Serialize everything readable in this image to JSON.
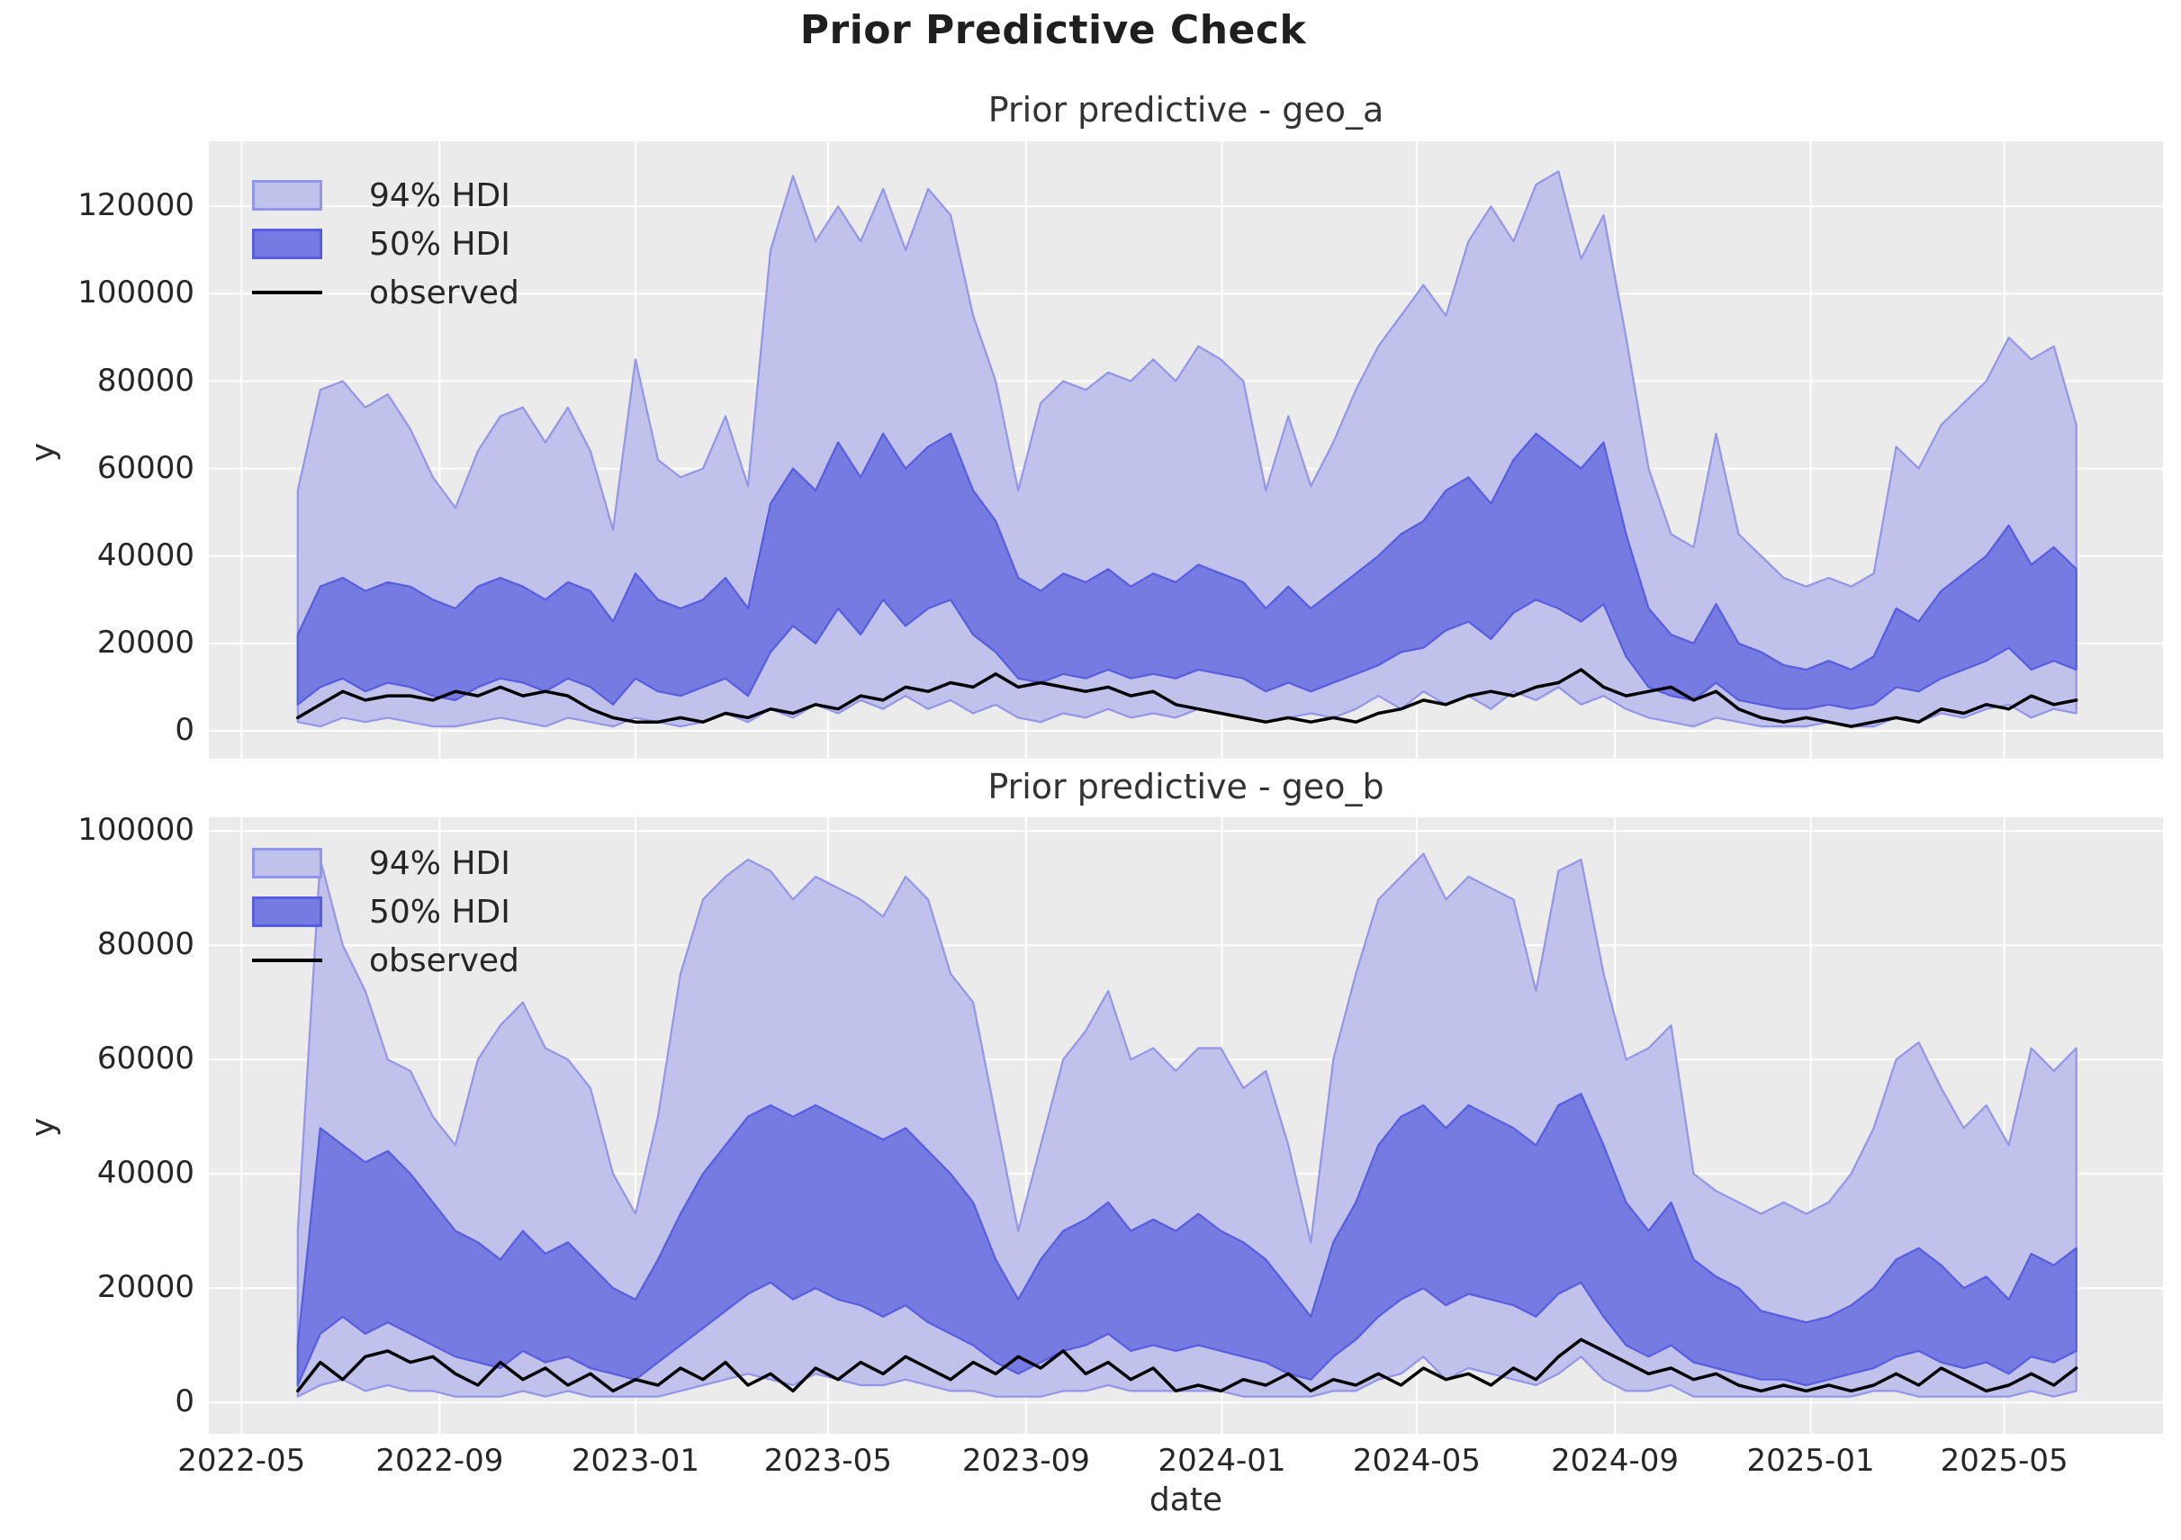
{
  "figure": {
    "title": "Prior Predictive Check"
  },
  "colors": {
    "figure_background": "#ffffff",
    "axes_background": "#ebebeb",
    "grid": "#ffffff",
    "hdi94_fill": "#c0c2eb",
    "hdi94_edge": "#9396e8",
    "hdi50_fill": "#767be2",
    "hdi50_edge": "#575ddf",
    "observed": "#000000",
    "text": "#262626"
  },
  "legend": {
    "hdi94_label": "94% HDI",
    "hdi50_label": "50% HDI",
    "observed_label": "observed"
  },
  "x_axis": {
    "label": "date",
    "xlim_weeks": [
      -7.9,
      165.7
    ],
    "x_start_date": "2022-06-05",
    "x_step_days": 14,
    "ticks": [
      {
        "label": "2022-05",
        "week": -5.0
      },
      {
        "label": "2022-09",
        "week": 12.6
      },
      {
        "label": "2023-01",
        "week": 30.0
      },
      {
        "label": "2023-05",
        "week": 47.1
      },
      {
        "label": "2023-09",
        "week": 64.7
      },
      {
        "label": "2024-01",
        "week": 82.1
      },
      {
        "label": "2024-05",
        "week": 99.4
      },
      {
        "label": "2024-09",
        "week": 117.0
      },
      {
        "label": "2025-01",
        "week": 134.4
      },
      {
        "label": "2025-05",
        "week": 151.6
      }
    ]
  },
  "chart_data": [
    {
      "type": "area",
      "name": "geo_a",
      "title": "Prior predictive - geo_a",
      "ylabel": "y",
      "legend_position": "upper left",
      "grid": true,
      "ylim": [
        -6400,
        134900
      ],
      "yticks": [
        0,
        20000,
        40000,
        60000,
        80000,
        100000,
        120000
      ],
      "x_weeks": [
        0,
        2,
        4,
        6,
        8,
        10,
        12,
        14,
        16,
        18,
        20,
        22,
        24,
        26,
        28,
        30,
        32,
        34,
        36,
        38,
        40,
        42,
        44,
        46,
        48,
        50,
        52,
        54,
        56,
        58,
        60,
        62,
        64,
        66,
        68,
        70,
        72,
        74,
        76,
        78,
        80,
        82,
        84,
        86,
        88,
        90,
        92,
        94,
        96,
        98,
        100,
        102,
        104,
        106,
        108,
        110,
        112,
        114,
        116,
        118,
        120,
        122,
        124,
        126,
        128,
        130,
        132,
        134,
        136,
        138,
        140,
        142,
        144,
        146,
        148,
        150,
        152,
        154,
        156,
        158
      ],
      "hdi94_upper": [
        55000,
        78000,
        80000,
        74000,
        77000,
        69000,
        58000,
        51000,
        64000,
        72000,
        74000,
        66000,
        74000,
        64000,
        46000,
        85000,
        62000,
        58000,
        60000,
        72000,
        56000,
        110000,
        127000,
        112000,
        120000,
        112000,
        124000,
        110000,
        124000,
        118000,
        95000,
        80000,
        55000,
        75000,
        80000,
        78000,
        82000,
        80000,
        85000,
        80000,
        88000,
        85000,
        80000,
        55000,
        72000,
        56000,
        66000,
        78000,
        88000,
        95000,
        102000,
        95000,
        112000,
        120000,
        112000,
        125000,
        128000,
        108000,
        118000,
        90000,
        60000,
        45000,
        42000,
        68000,
        45000,
        40000,
        35000,
        33000,
        35000,
        33000,
        36000,
        65000,
        60000,
        70000,
        75000,
        80000,
        90000,
        85000,
        88000,
        70000
      ],
      "hdi94_lower": [
        2000,
        1000,
        3000,
        2000,
        3000,
        2000,
        1000,
        1000,
        2000,
        3000,
        2000,
        1000,
        3000,
        2000,
        1000,
        3000,
        2000,
        1000,
        2000,
        4000,
        2000,
        5000,
        3000,
        6000,
        4000,
        7000,
        5000,
        8000,
        5000,
        7000,
        4000,
        6000,
        3000,
        2000,
        4000,
        3000,
        5000,
        3000,
        4000,
        3000,
        5000,
        4000,
        3000,
        2000,
        3000,
        4000,
        3000,
        5000,
        8000,
        5000,
        9000,
        6000,
        8000,
        5000,
        9000,
        7000,
        10000,
        6000,
        8000,
        5000,
        3000,
        2000,
        1000,
        3000,
        2000,
        1000,
        1000,
        1000,
        2000,
        1000,
        1000,
        3000,
        2000,
        4000,
        3000,
        5000,
        6000,
        3000,
        5000,
        4000
      ],
      "hdi50_upper": [
        22000,
        33000,
        35000,
        32000,
        34000,
        33000,
        30000,
        28000,
        33000,
        35000,
        33000,
        30000,
        34000,
        32000,
        25000,
        36000,
        30000,
        28000,
        30000,
        35000,
        28000,
        52000,
        60000,
        55000,
        66000,
        58000,
        68000,
        60000,
        65000,
        68000,
        55000,
        48000,
        35000,
        32000,
        36000,
        34000,
        37000,
        33000,
        36000,
        34000,
        38000,
        36000,
        34000,
        28000,
        33000,
        28000,
        32000,
        36000,
        40000,
        45000,
        48000,
        55000,
        58000,
        52000,
        62000,
        68000,
        64000,
        60000,
        66000,
        45000,
        28000,
        22000,
        20000,
        29000,
        20000,
        18000,
        15000,
        14000,
        16000,
        14000,
        17000,
        28000,
        25000,
        32000,
        36000,
        40000,
        47000,
        38000,
        42000,
        37000
      ],
      "hdi50_lower": [
        6000,
        10000,
        12000,
        9000,
        11000,
        10000,
        8000,
        7000,
        10000,
        12000,
        11000,
        9000,
        12000,
        10000,
        6000,
        12000,
        9000,
        8000,
        10000,
        12000,
        8000,
        18000,
        24000,
        20000,
        28000,
        22000,
        30000,
        24000,
        28000,
        30000,
        22000,
        18000,
        12000,
        11000,
        13000,
        12000,
        14000,
        12000,
        13000,
        12000,
        14000,
        13000,
        12000,
        9000,
        11000,
        9000,
        11000,
        13000,
        15000,
        18000,
        19000,
        23000,
        25000,
        21000,
        27000,
        30000,
        28000,
        25000,
        29000,
        17000,
        10000,
        8000,
        7000,
        11000,
        7000,
        6000,
        5000,
        5000,
        6000,
        5000,
        6000,
        10000,
        9000,
        12000,
        14000,
        16000,
        19000,
        14000,
        16000,
        14000
      ],
      "observed": [
        3000,
        6000,
        9000,
        7000,
        8000,
        8000,
        7000,
        9000,
        8000,
        10000,
        8000,
        9000,
        8000,
        5000,
        3000,
        2000,
        2000,
        3000,
        2000,
        4000,
        3000,
        5000,
        4000,
        6000,
        5000,
        8000,
        7000,
        10000,
        9000,
        11000,
        10000,
        13000,
        10000,
        11000,
        10000,
        9000,
        10000,
        8000,
        9000,
        6000,
        5000,
        4000,
        3000,
        2000,
        3000,
        2000,
        3000,
        2000,
        4000,
        5000,
        7000,
        6000,
        8000,
        9000,
        8000,
        10000,
        11000,
        14000,
        10000,
        8000,
        9000,
        10000,
        7000,
        9000,
        5000,
        3000,
        2000,
        3000,
        2000,
        1000,
        2000,
        3000,
        2000,
        5000,
        4000,
        6000,
        5000,
        8000,
        6000,
        7000
      ]
    },
    {
      "type": "area",
      "name": "geo_b",
      "title": "Prior predictive - geo_b",
      "ylabel": "y",
      "legend_position": "upper left",
      "grid": true,
      "ylim": [
        -5500,
        102400
      ],
      "yticks": [
        0,
        20000,
        40000,
        60000,
        80000,
        100000
      ],
      "x_weeks": [
        0,
        2,
        4,
        6,
        8,
        10,
        12,
        14,
        16,
        18,
        20,
        22,
        24,
        26,
        28,
        30,
        32,
        34,
        36,
        38,
        40,
        42,
        44,
        46,
        48,
        50,
        52,
        54,
        56,
        58,
        60,
        62,
        64,
        66,
        68,
        70,
        72,
        74,
        76,
        78,
        80,
        82,
        84,
        86,
        88,
        90,
        92,
        94,
        96,
        98,
        100,
        102,
        104,
        106,
        108,
        110,
        112,
        114,
        116,
        118,
        120,
        122,
        124,
        126,
        128,
        130,
        132,
        134,
        136,
        138,
        140,
        142,
        144,
        146,
        148,
        150,
        152,
        154,
        156,
        158
      ],
      "hdi94_upper": [
        30000,
        95000,
        80000,
        72000,
        60000,
        58000,
        50000,
        45000,
        60000,
        66000,
        70000,
        62000,
        60000,
        55000,
        40000,
        33000,
        50000,
        75000,
        88000,
        92000,
        95000,
        93000,
        88000,
        92000,
        90000,
        88000,
        85000,
        92000,
        88000,
        75000,
        70000,
        50000,
        30000,
        45000,
        60000,
        65000,
        72000,
        60000,
        62000,
        58000,
        62000,
        62000,
        55000,
        58000,
        45000,
        28000,
        60000,
        75000,
        88000,
        92000,
        96000,
        88000,
        92000,
        90000,
        88000,
        72000,
        93000,
        95000,
        75000,
        60000,
        62000,
        66000,
        40000,
        37000,
        35000,
        33000,
        35000,
        33000,
        35000,
        40000,
        48000,
        60000,
        63000,
        55000,
        48000,
        52000,
        45000,
        62000,
        58000,
        62000
      ],
      "hdi94_lower": [
        1000,
        3000,
        4000,
        2000,
        3000,
        2000,
        2000,
        1000,
        1000,
        1000,
        2000,
        1000,
        2000,
        1000,
        1000,
        1000,
        1000,
        2000,
        3000,
        4000,
        5000,
        4000,
        3000,
        5000,
        4000,
        3000,
        3000,
        4000,
        3000,
        2000,
        2000,
        1000,
        1000,
        1000,
        2000,
        2000,
        3000,
        2000,
        2000,
        2000,
        2000,
        2000,
        1000,
        1000,
        1000,
        1000,
        2000,
        2000,
        4000,
        5000,
        8000,
        4000,
        6000,
        5000,
        4000,
        3000,
        5000,
        8000,
        4000,
        2000,
        2000,
        3000,
        1000,
        1000,
        1000,
        1000,
        1000,
        1000,
        1000,
        1000,
        2000,
        2000,
        1000,
        1000,
        1000,
        1000,
        1000,
        2000,
        1000,
        2000
      ],
      "hdi50_upper": [
        10000,
        48000,
        45000,
        42000,
        44000,
        40000,
        35000,
        30000,
        28000,
        25000,
        30000,
        26000,
        28000,
        24000,
        20000,
        18000,
        25000,
        33000,
        40000,
        45000,
        50000,
        52000,
        50000,
        52000,
        50000,
        48000,
        46000,
        48000,
        44000,
        40000,
        35000,
        25000,
        18000,
        25000,
        30000,
        32000,
        35000,
        30000,
        32000,
        30000,
        33000,
        30000,
        28000,
        25000,
        20000,
        15000,
        28000,
        35000,
        45000,
        50000,
        52000,
        48000,
        52000,
        50000,
        48000,
        45000,
        52000,
        54000,
        45000,
        35000,
        30000,
        35000,
        25000,
        22000,
        20000,
        16000,
        15000,
        14000,
        15000,
        17000,
        20000,
        25000,
        27000,
        24000,
        20000,
        22000,
        18000,
        26000,
        24000,
        27000
      ],
      "hdi50_lower": [
        3000,
        12000,
        15000,
        12000,
        14000,
        12000,
        10000,
        8000,
        7000,
        6000,
        9000,
        7000,
        8000,
        6000,
        5000,
        4000,
        7000,
        10000,
        13000,
        16000,
        19000,
        21000,
        18000,
        20000,
        18000,
        17000,
        15000,
        17000,
        14000,
        12000,
        10000,
        7000,
        5000,
        7000,
        9000,
        10000,
        12000,
        9000,
        10000,
        9000,
        10000,
        9000,
        8000,
        7000,
        5000,
        4000,
        8000,
        11000,
        15000,
        18000,
        20000,
        17000,
        19000,
        18000,
        17000,
        15000,
        19000,
        21000,
        15000,
        10000,
        8000,
        10000,
        7000,
        6000,
        5000,
        4000,
        4000,
        3000,
        4000,
        5000,
        6000,
        8000,
        9000,
        7000,
        6000,
        7000,
        5000,
        8000,
        7000,
        9000
      ],
      "observed": [
        2000,
        7000,
        4000,
        8000,
        9000,
        7000,
        8000,
        5000,
        3000,
        7000,
        4000,
        6000,
        3000,
        5000,
        2000,
        4000,
        3000,
        6000,
        4000,
        7000,
        3000,
        5000,
        2000,
        6000,
        4000,
        7000,
        5000,
        8000,
        6000,
        4000,
        7000,
        5000,
        8000,
        6000,
        9000,
        5000,
        7000,
        4000,
        6000,
        2000,
        3000,
        2000,
        4000,
        3000,
        5000,
        2000,
        4000,
        3000,
        5000,
        3000,
        6000,
        4000,
        5000,
        3000,
        6000,
        4000,
        8000,
        11000,
        9000,
        7000,
        5000,
        6000,
        4000,
        5000,
        3000,
        2000,
        3000,
        2000,
        3000,
        2000,
        3000,
        5000,
        3000,
        6000,
        4000,
        2000,
        3000,
        5000,
        3000,
        6000
      ]
    }
  ]
}
